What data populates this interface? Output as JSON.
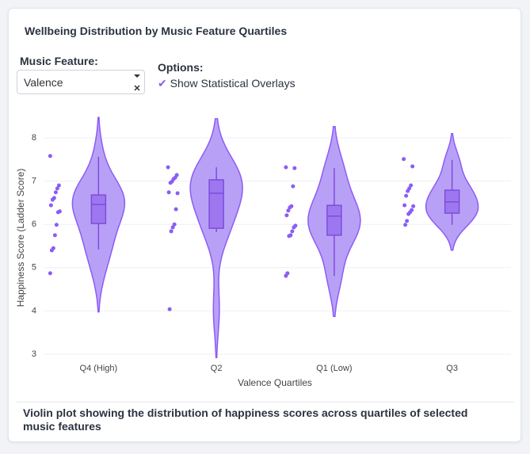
{
  "header": {
    "title": "Wellbeing Distribution by Music Feature Quartiles"
  },
  "controls": {
    "feature_label": "Music Feature:",
    "feature_value": "Valence",
    "options_label": "Options:",
    "overlay_option": "Show Statistical Overlays"
  },
  "chart_data": {
    "type": "violin",
    "x_label": "Valence Quartiles",
    "y_label": "Happiness Score (Ladder Score)",
    "categories": [
      "Q4 (High)",
      "Q2",
      "Q1 (Low)",
      "Q3"
    ],
    "values": [
      [
        7.58,
        6.9,
        6.83,
        6.74,
        6.61,
        6.57,
        6.44,
        6.3,
        6.28,
        5.99,
        5.75,
        5.45,
        5.4,
        4.87
      ],
      [
        7.32,
        7.14,
        7.08,
        7.05,
        6.99,
        6.96,
        6.74,
        6.72,
        6.35,
        6.0,
        5.93,
        5.84,
        4.04
      ],
      [
        7.32,
        7.3,
        6.88,
        6.42,
        6.39,
        6.32,
        6.21,
        5.97,
        5.93,
        5.84,
        5.75,
        5.73,
        4.87,
        4.81
      ],
      [
        7.51,
        7.34,
        6.9,
        6.83,
        6.77,
        6.66,
        6.44,
        6.42,
        6.33,
        6.28,
        6.24,
        6.08,
        5.99
      ]
    ],
    "box": [
      {
        "lower": 5.42,
        "q1": 6.02,
        "median": 6.46,
        "q3": 6.68,
        "upper": 7.56
      },
      {
        "lower": 5.82,
        "q1": 5.91,
        "median": 6.72,
        "q3": 7.03,
        "upper": 7.32
      },
      {
        "lower": 4.81,
        "q1": 5.75,
        "median": 6.19,
        "q3": 6.44,
        "upper": 7.3
      },
      {
        "lower": 5.99,
        "q1": 6.26,
        "median": 6.52,
        "q3": 6.79,
        "upper": 7.49
      }
    ],
    "color": "#8b5cf6",
    "ylim": [
      2.85,
      8.45
    ],
    "yticks": [
      3,
      4,
      5,
      6,
      7,
      8
    ],
    "grid": true
  },
  "caption": "Violin plot showing the distribution of happiness scores across quartiles of selected music features"
}
